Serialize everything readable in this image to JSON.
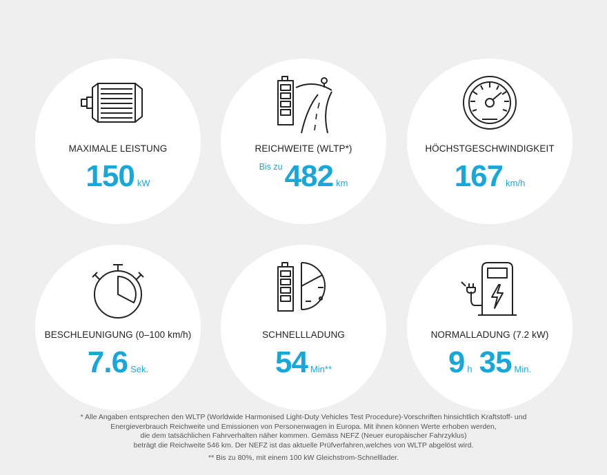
{
  "cards": [
    {
      "label": "MAXIMALE LEISTUNG",
      "prefix": "",
      "value": "150",
      "unit": "kW",
      "icon": "electric-motor-icon"
    },
    {
      "label": "REICHWEITE (WLTP*)",
      "prefix": "Bis zu",
      "value": "482",
      "unit": "km",
      "icon": "battery-road-icon"
    },
    {
      "label": "HÖCHSTGESCHWINDIGKEIT",
      "prefix": "",
      "value": "167",
      "unit": "km/h",
      "icon": "speedometer-icon"
    },
    {
      "label": "BESCHLEUNIGUNG (0–100 km/h)",
      "prefix": "",
      "value": "7.6",
      "unit": "Sek.",
      "icon": "stopwatch-icon"
    },
    {
      "label": "SCHNELLLADUNG",
      "prefix": "",
      "value": "54",
      "unit": "Min**",
      "icon": "battery-fast-charge-icon"
    },
    {
      "label": "NORMALLADUNG (7.2 kW)",
      "value_hours": "9",
      "unit_hours": "h",
      "value_minutes": "35",
      "unit_minutes": "Min.",
      "icon": "charging-station-icon"
    }
  ],
  "colors": {
    "accent": "#1aa7d8",
    "background": "#efefef",
    "card": "#ffffff"
  },
  "footnote": {
    "line1": "* Alle Angaben entsprechen den WLTP (Worldwide Harmonised Light-Duty Vehicles Test Procedure)-Vorschriften hinsichtlich Kraftstoff- und",
    "line2": "Energieverbrauch Reichweite und Emissionen von Personenwagen in Europa. Mit ihnen können Werte erhoben werden,",
    "line3": "die dem tatsächlichen Fahrverhalten näher kommen. Gemäss NEFZ (Neuer europäischer Fahrzyklus)",
    "line4": "beträgt die Reichweite 546 km. Der NEFZ ist das aktuelle Prüfverfahren,welches von WLTP abgelöst wird.",
    "line5": "** Bis zu 80%, mit einem 100 kW Gleichstrom-Schnelllader."
  }
}
